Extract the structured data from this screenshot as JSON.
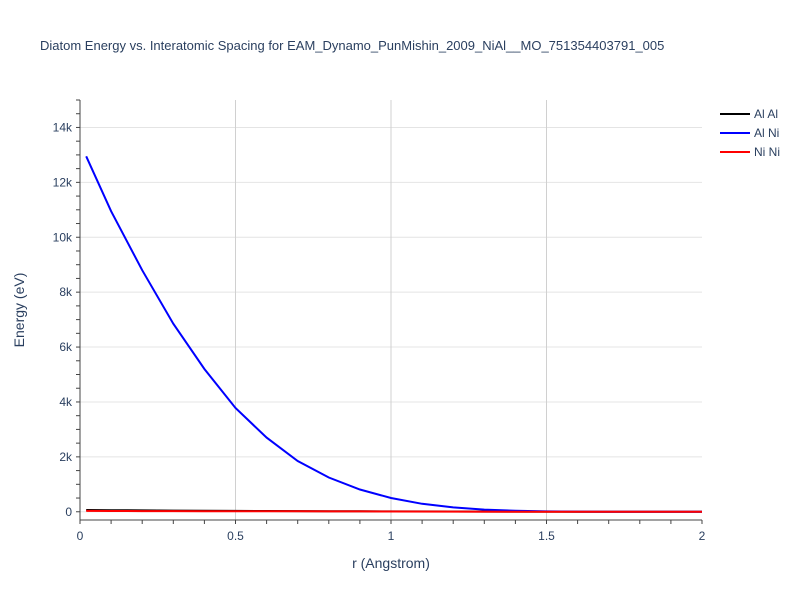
{
  "chart_data": {
    "type": "line",
    "title": "Diatom Energy vs. Interatomic Spacing for EAM_Dynamo_PunMishin_2009_NiAl__MO_751354403791_005",
    "xlabel": "r (Angstrom)",
    "ylabel": "Energy (eV)",
    "xlim": [
      0,
      2
    ],
    "ylim": [
      -300,
      15000
    ],
    "x_ticks": [
      0,
      0.5,
      1,
      1.5,
      2
    ],
    "x_tick_labels": [
      "0",
      "0.5",
      "1",
      "1.5",
      "2"
    ],
    "y_ticks": [
      0,
      2000,
      4000,
      6000,
      8000,
      10000,
      12000,
      14000
    ],
    "y_tick_labels": [
      "0",
      "2k",
      "4k",
      "6k",
      "8k",
      "10k",
      "12k",
      "14k"
    ],
    "grid": true,
    "legend_position": "top-right",
    "series": [
      {
        "name": "Al Al",
        "color": "#000000",
        "x": [
          0.02,
          0.1,
          0.2,
          0.3,
          0.4,
          0.5,
          0.6,
          0.7,
          0.8,
          0.9,
          1.0,
          1.2,
          1.4,
          1.6,
          1.8,
          2.0
        ],
        "y": [
          65,
          58,
          50,
          43,
          37,
          32,
          27,
          23,
          19,
          16,
          13,
          9,
          6,
          3,
          1,
          0
        ]
      },
      {
        "name": "Al Ni",
        "color": "#0000ff",
        "x": [
          0.02,
          0.1,
          0.2,
          0.3,
          0.4,
          0.5,
          0.6,
          0.7,
          0.8,
          0.9,
          1.0,
          1.1,
          1.2,
          1.3,
          1.4,
          1.5,
          1.6,
          1.7,
          1.8,
          1.9,
          2.0
        ],
        "y": [
          12950,
          10950,
          8800,
          6850,
          5200,
          3780,
          2700,
          1850,
          1250,
          810,
          500,
          290,
          160,
          80,
          35,
          15,
          6,
          2,
          0,
          0,
          0
        ]
      },
      {
        "name": "Ni Ni",
        "color": "#ff0000",
        "x": [
          0.02,
          0.1,
          0.2,
          0.3,
          0.4,
          0.5,
          0.6,
          0.7,
          0.8,
          0.9,
          1.0,
          1.2,
          1.4,
          1.6,
          1.8,
          2.0
        ],
        "y": [
          30,
          28,
          26,
          24,
          22,
          20,
          18,
          16,
          14,
          12,
          10,
          7,
          4,
          2,
          1,
          0
        ]
      }
    ]
  }
}
